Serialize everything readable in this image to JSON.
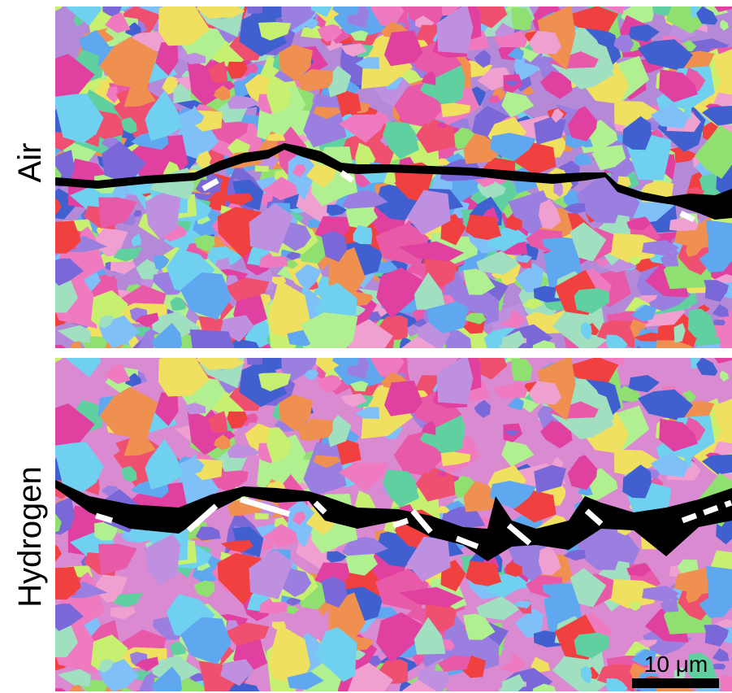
{
  "panels": [
    {
      "label": "Air"
    },
    {
      "label": "Hydrogen"
    }
  ],
  "scale_bar": {
    "label": "10 μm"
  }
}
